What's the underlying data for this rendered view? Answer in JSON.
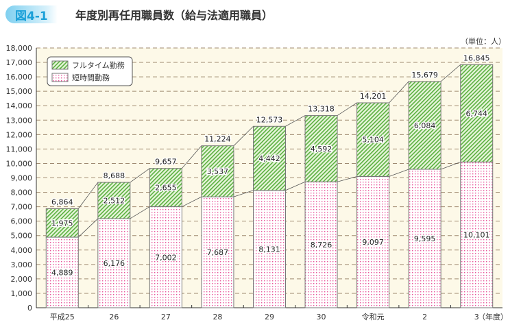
{
  "figure_label": "図4-1",
  "chart_data": {
    "type": "bar",
    "stacked": true,
    "title": "年度別再任用職員数（給与法適用職員）",
    "unit": "（単位：人）",
    "xlabel": "（年度）",
    "categories": [
      "平成25",
      "26",
      "27",
      "28",
      "29",
      "30",
      "令和元",
      "2",
      "3"
    ],
    "series": [
      {
        "name": "短時間勤務",
        "color": "#e8559a",
        "values": [
          4889,
          6176,
          7002,
          7687,
          8131,
          8726,
          9097,
          9595,
          10101
        ]
      },
      {
        "name": "フルタイム勤務",
        "color": "#5bb040",
        "values": [
          1975,
          2512,
          2655,
          3537,
          4442,
          4592,
          5104,
          6084,
          6744
        ]
      }
    ],
    "totals": [
      6864,
      8688,
      9657,
      11224,
      12573,
      13318,
      14201,
      15679,
      16845
    ],
    "ylim": [
      0,
      18000
    ],
    "yticks": [
      0,
      1000,
      2000,
      3000,
      4000,
      5000,
      6000,
      7000,
      8000,
      9000,
      10000,
      11000,
      12000,
      13000,
      14000,
      15000,
      16000,
      17000,
      18000
    ],
    "grid": true,
    "legend_position": "top-left",
    "plot_background": "#fdf9e8"
  }
}
